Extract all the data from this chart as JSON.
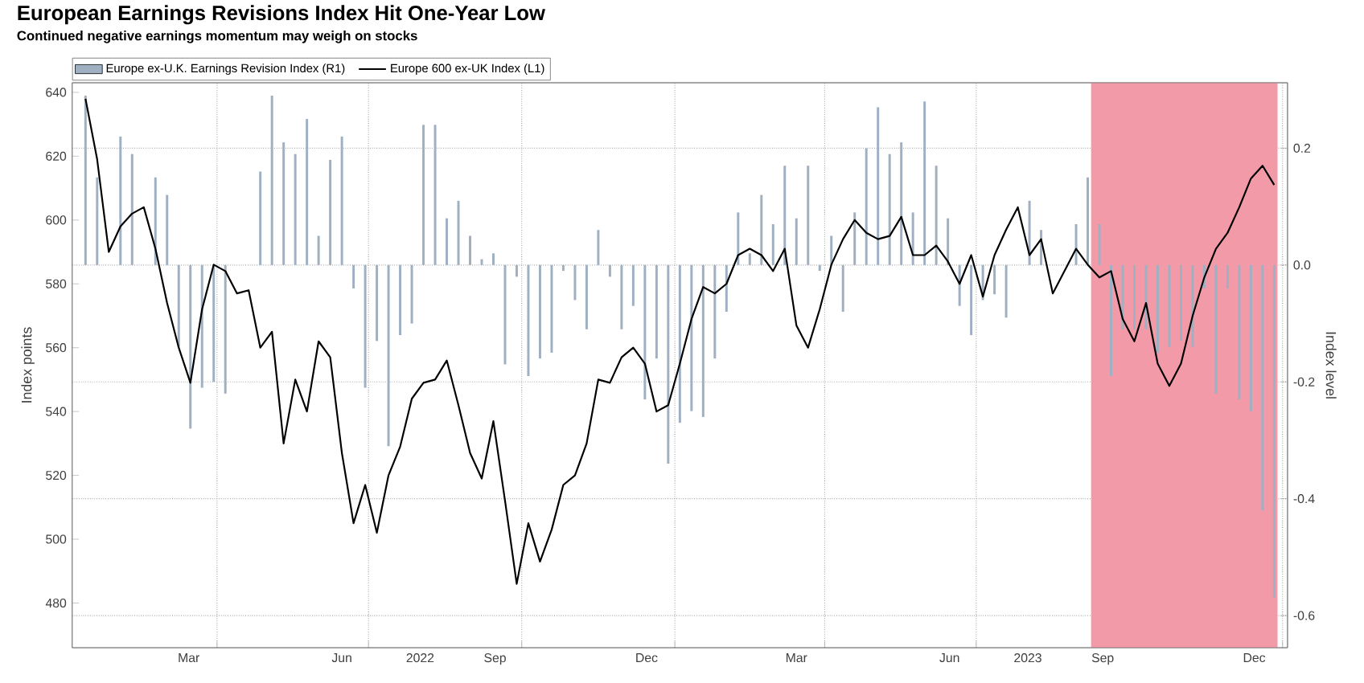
{
  "chart_data": {
    "type": "line",
    "title": "European Earnings Revisions Index Hit One-Year Low",
    "subtitle": "Continued negative earnings momentum may weigh on stocks",
    "ylabel": "Index points",
    "y2label": "Index level",
    "x": [
      "2022-01-12",
      "2022-01-19",
      "2022-01-26",
      "2022-02-02",
      "2022-02-09",
      "2022-02-16",
      "2022-02-23",
      "2022-03-02",
      "2022-03-09",
      "2022-03-16",
      "2022-03-23",
      "2022-03-30",
      "2022-04-06",
      "2022-04-13",
      "2022-04-20",
      "2022-04-27",
      "2022-05-04",
      "2022-05-11",
      "2022-05-18",
      "2022-05-25",
      "2022-06-01",
      "2022-06-08",
      "2022-06-15",
      "2022-06-22",
      "2022-06-29",
      "2022-07-06",
      "2022-07-13",
      "2022-07-20",
      "2022-07-27",
      "2022-08-03",
      "2022-08-10",
      "2022-08-17",
      "2022-08-24",
      "2022-08-31",
      "2022-09-07",
      "2022-09-14",
      "2022-09-21",
      "2022-09-28",
      "2022-10-05",
      "2022-10-12",
      "2022-10-19",
      "2022-10-26",
      "2022-11-02",
      "2022-11-09",
      "2022-11-16",
      "2022-11-23",
      "2022-11-30",
      "2022-12-07",
      "2022-12-14",
      "2022-12-21",
      "2022-12-28",
      "2023-01-04",
      "2023-01-11",
      "2023-01-18",
      "2023-01-25",
      "2023-02-01",
      "2023-02-08",
      "2023-02-15",
      "2023-02-22",
      "2023-03-01",
      "2023-03-08",
      "2023-03-15",
      "2023-03-22",
      "2023-03-29",
      "2023-04-05",
      "2023-04-12",
      "2023-04-19",
      "2023-04-26",
      "2023-05-03",
      "2023-05-10",
      "2023-05-17",
      "2023-05-24",
      "2023-05-31",
      "2023-06-07",
      "2023-06-14",
      "2023-06-21",
      "2023-06-28",
      "2023-07-05",
      "2023-07-12",
      "2023-07-19",
      "2023-07-26",
      "2023-08-02",
      "2023-08-09",
      "2023-08-16",
      "2023-08-23",
      "2023-08-30",
      "2023-09-06",
      "2023-09-13",
      "2023-09-20",
      "2023-09-27",
      "2023-10-04",
      "2023-10-11",
      "2023-10-18",
      "2023-10-25",
      "2023-11-01",
      "2023-11-08",
      "2023-11-15",
      "2023-11-22",
      "2023-11-29",
      "2023-12-06",
      "2023-12-13",
      "2023-12-20",
      "2023-12-27"
    ],
    "series": [
      {
        "name": "Europe ex-U.K. Earnings Revision Index (R1)",
        "type": "bar",
        "axis": "y2",
        "color": "#9fb0c2",
        "values": [
          0.29,
          0.15,
          null,
          0.22,
          0.19,
          null,
          0.15,
          0.12,
          -0.14,
          -0.28,
          -0.21,
          -0.2,
          -0.22,
          null,
          null,
          0.16,
          0.29,
          0.21,
          0.19,
          0.25,
          0.05,
          0.18,
          0.22,
          -0.04,
          -0.21,
          -0.13,
          -0.31,
          -0.12,
          -0.1,
          0.24,
          0.24,
          0.08,
          0.11,
          0.05,
          0.01,
          0.02,
          -0.17,
          -0.02,
          -0.19,
          -0.16,
          -0.15,
          -0.01,
          -0.06,
          -0.11,
          0.06,
          -0.02,
          -0.11,
          -0.07,
          -0.23,
          -0.16,
          -0.34,
          -0.27,
          -0.25,
          -0.26,
          -0.16,
          -0.08,
          0.09,
          0.02,
          0.12,
          0.07,
          0.17,
          0.08,
          0.17,
          -0.01,
          0.05,
          -0.08,
          0.09,
          0.2,
          0.27,
          0.19,
          0.21,
          0.09,
          0.28,
          0.17,
          0.08,
          -0.07,
          -0.12,
          -0.06,
          -0.05,
          -0.09,
          null,
          0.11,
          0.06,
          null,
          null,
          0.07,
          0.15,
          0.07,
          -0.19,
          -0.11,
          -0.11,
          -0.11,
          -0.15,
          -0.14,
          -0.13,
          -0.14,
          -0.04,
          -0.22,
          -0.04,
          -0.23,
          -0.25,
          -0.42,
          -0.57
        ]
      },
      {
        "name": "Europe 600 ex-UK Index (L1)",
        "color": "#000000",
        "values": [
          638,
          619,
          590,
          598,
          602,
          604,
          591,
          574,
          560,
          549,
          572,
          586,
          584,
          577,
          578,
          560,
          565,
          530,
          550,
          540,
          562,
          557,
          527,
          505,
          517,
          502,
          520,
          529,
          544,
          549,
          550,
          556,
          542,
          527,
          519,
          537,
          512,
          486,
          505,
          493,
          503,
          517,
          520,
          530,
          550,
          549,
          557,
          560,
          555,
          540,
          542,
          555,
          569,
          579,
          577,
          580,
          589,
          591,
          589,
          584,
          591,
          567,
          560,
          572,
          586,
          594,
          600,
          596,
          594,
          595,
          601,
          589,
          589,
          592,
          587,
          580,
          589,
          576,
          589,
          597,
          604,
          589,
          594,
          577,
          584,
          591,
          586,
          582,
          584,
          569,
          562,
          574,
          555,
          548,
          555,
          570,
          582,
          591,
          596,
          604,
          613,
          617,
          611
        ]
      }
    ],
    "xlim": [
      "2022-01-04",
      "2024-01-04"
    ],
    "xticks": [
      {
        "value": "2022-03-15",
        "label": "Mar"
      },
      {
        "value": "2022-06-15",
        "label": "Jun"
      },
      {
        "value": "2022-09-15",
        "label": "Sep"
      },
      {
        "value": "2022-12-15",
        "label": "Dec"
      },
      {
        "value": "2023-03-15",
        "label": "Mar"
      },
      {
        "value": "2023-06-15",
        "label": "Jun"
      },
      {
        "value": "2023-09-15",
        "label": "Sep"
      },
      {
        "value": "2023-12-15",
        "label": "Dec"
      },
      {
        "value": "2022-08-01",
        "label": "2022"
      },
      {
        "value": "2023-08-01",
        "label": "2023"
      },
      {
        "value": "2022-04-01",
        "label": null
      },
      {
        "value": "2022-07-01",
        "label": null
      },
      {
        "value": "2022-10-01",
        "label": null
      },
      {
        "value": "2023-01-01",
        "label": null
      },
      {
        "value": "2023-04-01",
        "label": null
      },
      {
        "value": "2023-07-01",
        "label": null
      },
      {
        "value": "2023-10-01",
        "label": null
      },
      {
        "value": "2024-01-01",
        "label": null
      }
    ],
    "ylim": [
      466,
      643
    ],
    "yticks": [
      480,
      500,
      520,
      540,
      560,
      580,
      600,
      620,
      640
    ],
    "y2lim": [
      -0.655,
      0.312
    ],
    "y2ticks": [
      -0.6,
      -0.4,
      -0.2,
      {
        "value": 0,
        "label": "0.0"
      },
      0.2
    ],
    "bands": [
      {
        "axis": "x",
        "from": "2023-09-08",
        "to": "2023-12-29",
        "color": "#f39aa8"
      }
    ],
    "grid": true,
    "legend": "top left"
  }
}
